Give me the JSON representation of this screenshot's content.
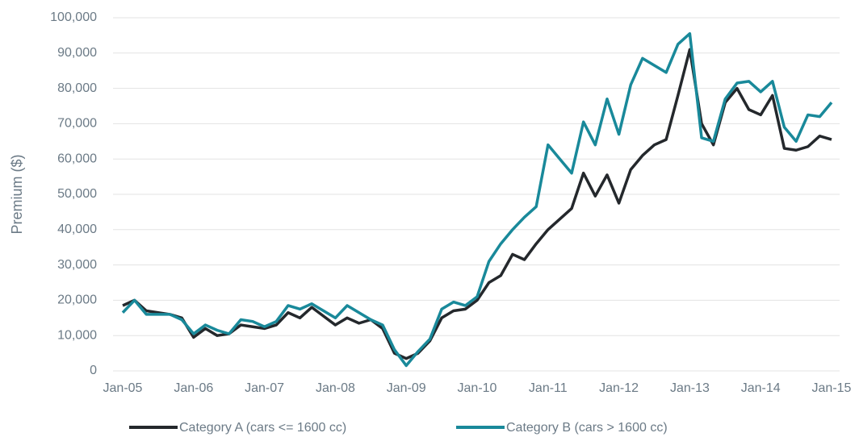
{
  "chart_data": {
    "type": "line",
    "y_label": "Premium ($)",
    "categories": [
      "Jan-05",
      null,
      null,
      null,
      null,
      null,
      "Jan-06",
      null,
      null,
      null,
      null,
      null,
      "Jan-07",
      null,
      null,
      null,
      null,
      null,
      "Jan-08",
      null,
      null,
      null,
      null,
      null,
      "Jan-09",
      null,
      null,
      null,
      null,
      null,
      "Jan-10",
      null,
      null,
      null,
      null,
      null,
      "Jan-11",
      null,
      null,
      null,
      null,
      null,
      "Jan-12",
      null,
      null,
      null,
      null,
      null,
      "Jan-13",
      null,
      null,
      null,
      null,
      null,
      "Jan-14",
      null,
      null,
      null,
      null,
      null,
      "Jan-15"
    ],
    "series": [
      {
        "name": "Category A (cars <= 1600 cc)",
        "color": "#24282c",
        "values": [
          18500,
          20000,
          17000,
          16500,
          16000,
          15000,
          9500,
          12000,
          10000,
          10500,
          13000,
          12500,
          12000,
          13000,
          16500,
          15000,
          18000,
          15500,
          13000,
          15000,
          13500,
          14500,
          12000,
          5000,
          3500,
          5000,
          8500,
          15000,
          17000,
          17500,
          20000,
          25000,
          27000,
          33000,
          31500,
          36000,
          40000,
          43000,
          46000,
          56000,
          49500,
          55500,
          47500,
          57000,
          61000,
          64000,
          65500,
          78000,
          91000,
          70000,
          64000,
          76000,
          80000,
          74000,
          72500,
          78000,
          63000,
          62500,
          63500,
          66500,
          65500
        ]
      },
      {
        "name": "Category B (cars > 1600 cc)",
        "color": "#19899a",
        "values": [
          16500,
          20000,
          16000,
          16000,
          16000,
          14500,
          10500,
          13000,
          11500,
          10500,
          14500,
          14000,
          12500,
          14000,
          18500,
          17500,
          19000,
          17000,
          15000,
          18500,
          16500,
          14500,
          13000,
          6000,
          1500,
          5500,
          9000,
          17500,
          19500,
          18500,
          21000,
          31000,
          36000,
          40000,
          43500,
          46500,
          64000,
          60000,
          56000,
          70500,
          64000,
          77000,
          67000,
          81000,
          88500,
          86500,
          84500,
          92500,
          95500,
          66000,
          65000,
          77000,
          81500,
          82000,
          79000,
          82000,
          69000,
          65000,
          72500,
          72000,
          76000
        ]
      }
    ],
    "ylim": [
      0,
      100000
    ],
    "yticks": [
      0,
      {
        "value": 10000,
        "label": "10,000"
      },
      {
        "value": 20000,
        "label": "20,000"
      },
      {
        "value": 30000,
        "label": "30,000"
      },
      {
        "value": 40000,
        "label": "40,000"
      },
      {
        "value": 50000,
        "label": "50,000"
      },
      {
        "value": 60000,
        "label": "60,000"
      },
      {
        "value": 70000,
        "label": "70,000"
      },
      {
        "value": 80000,
        "label": "80,000"
      },
      {
        "value": 90000,
        "label": "90,000"
      },
      {
        "value": 100000,
        "label": "100,000"
      }
    ],
    "grid": true
  }
}
